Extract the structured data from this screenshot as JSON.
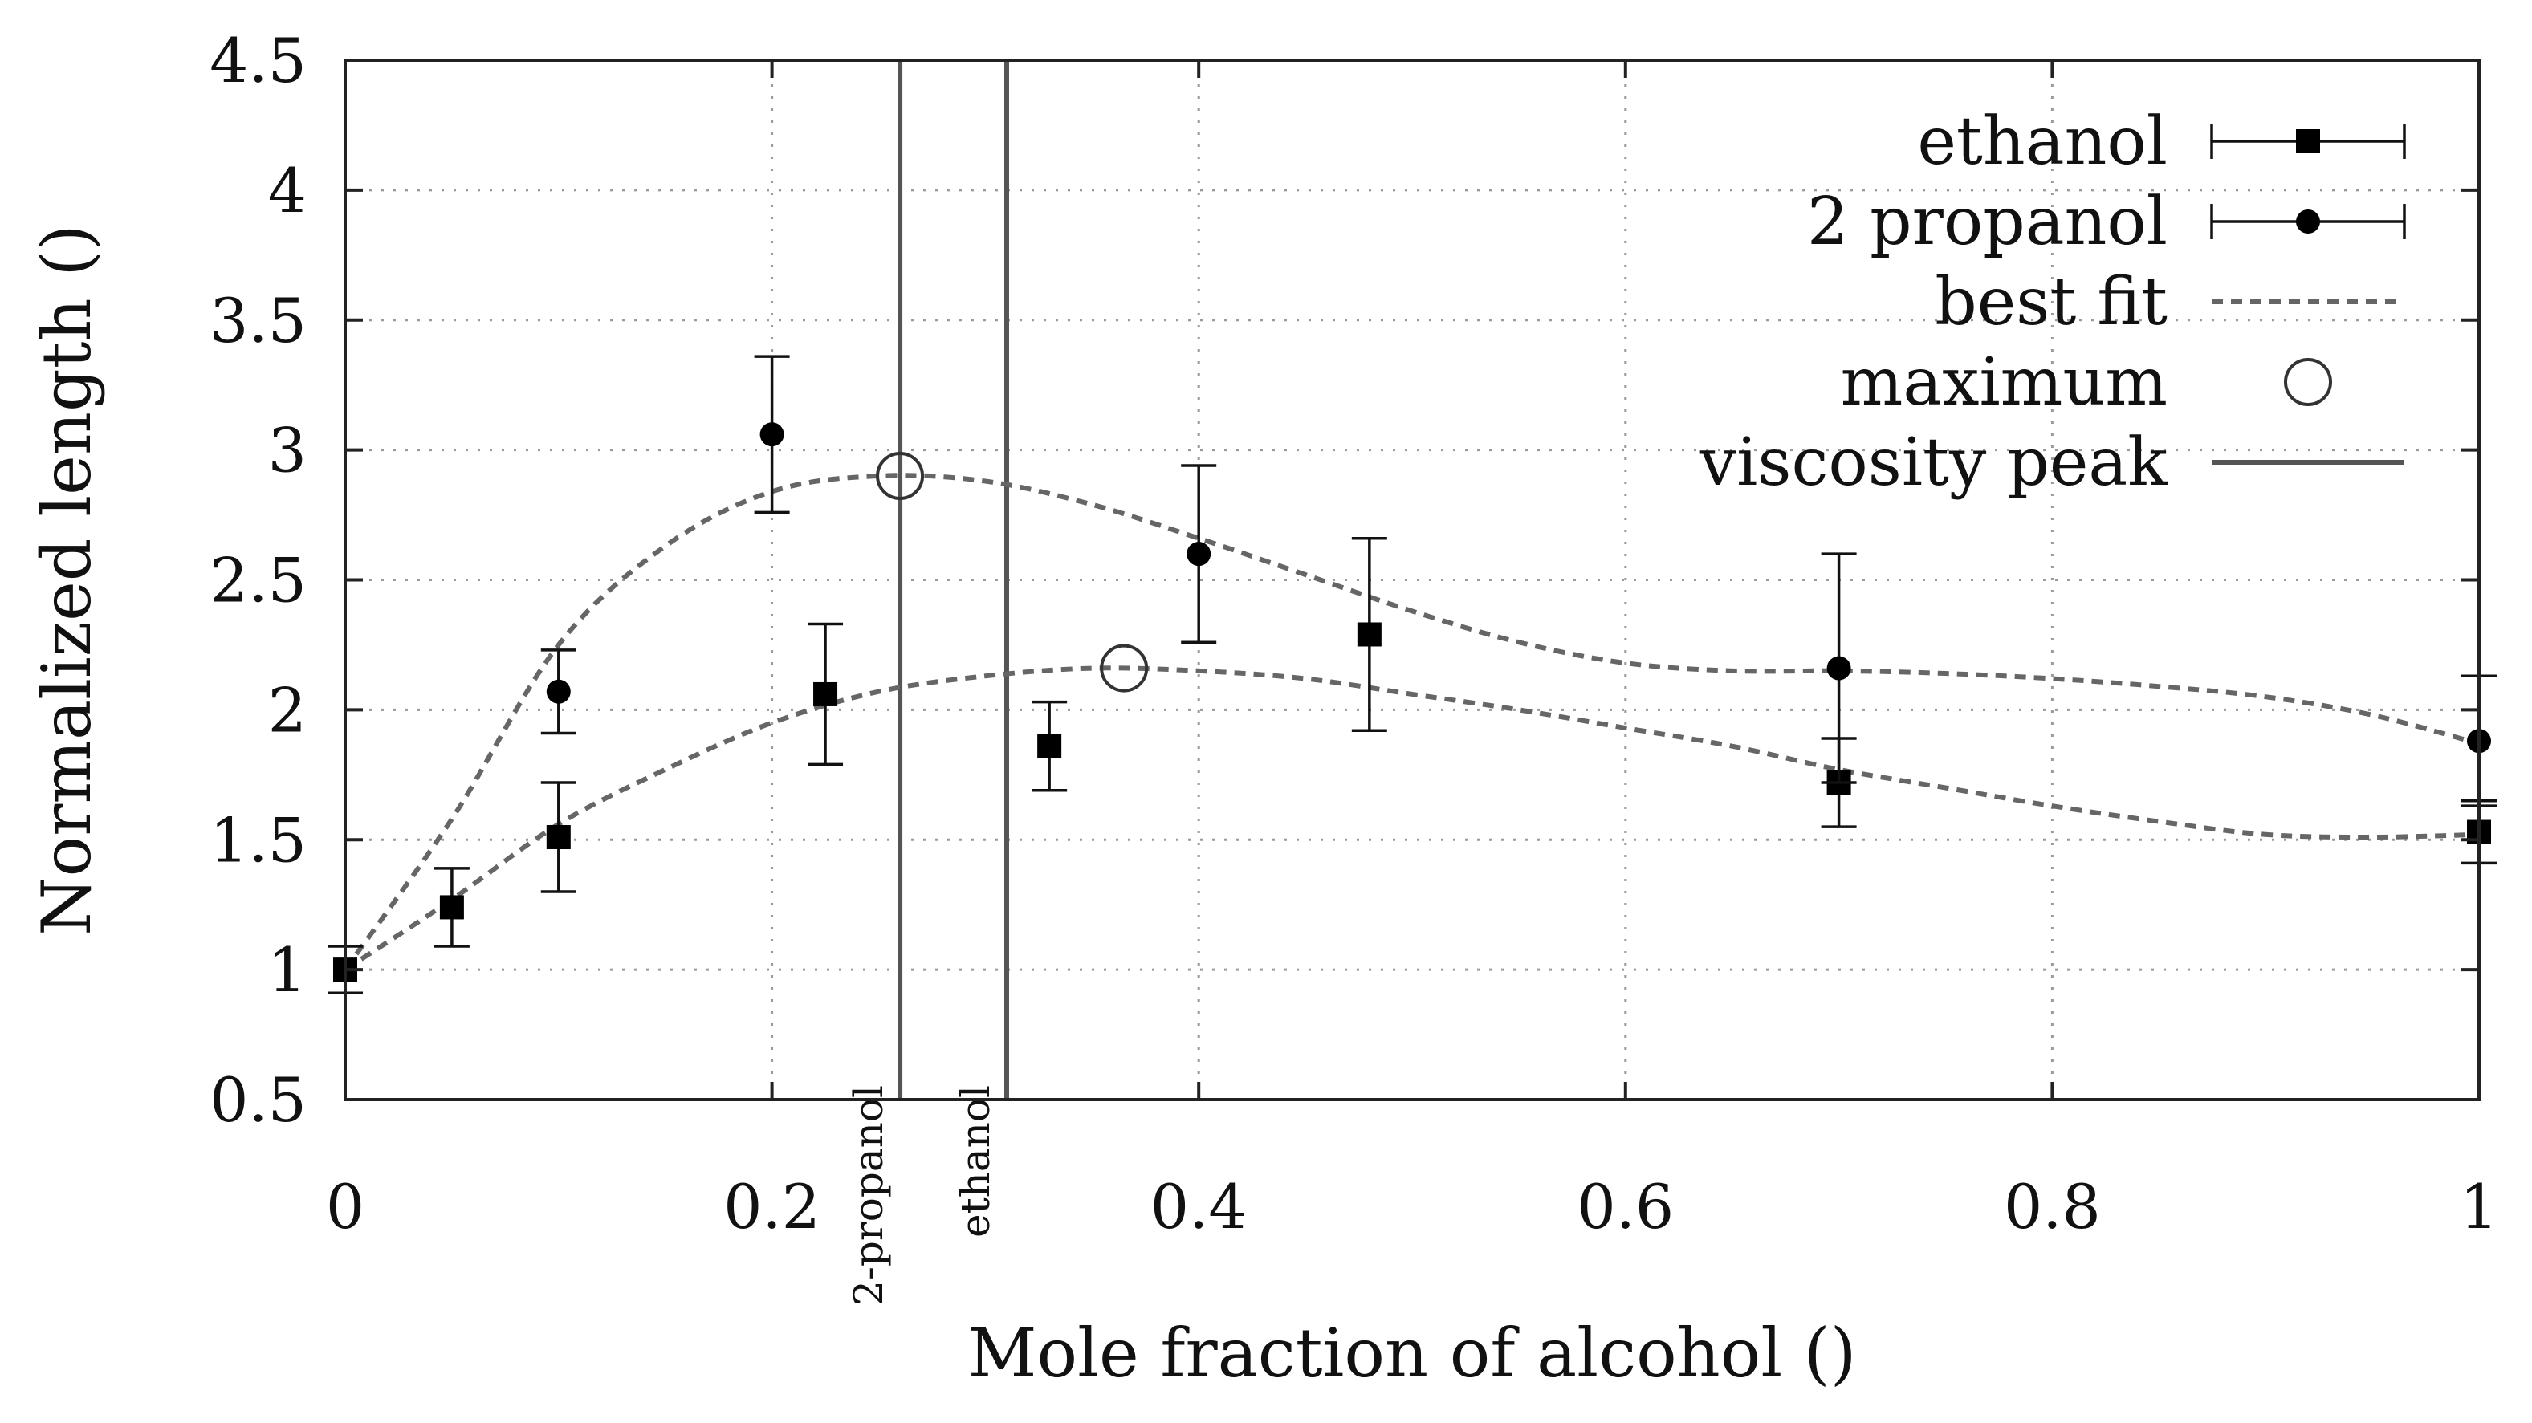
{
  "chart_data": {
    "type": "scatter",
    "title": "",
    "xlabel": "Mole fraction of alcohol ()",
    "ylabel": "Normalized length ()",
    "xlim": [
      0,
      1
    ],
    "ylim": [
      0.5,
      4.5
    ],
    "x_ticks": [
      "0",
      "0.2",
      "0.4",
      "0.6",
      "0.8",
      "1"
    ],
    "y_ticks": [
      "0.5",
      "1",
      "1.5",
      "2",
      "2.5",
      "3",
      "3.5",
      "4",
      "4.5"
    ],
    "grid": true,
    "legend_position": "top-right",
    "legend": [
      {
        "label": "ethanol",
        "kind": "square-errorbar"
      },
      {
        "label": "2 propanol",
        "kind": "circle-errorbar"
      },
      {
        "label": "best fit",
        "kind": "dashed-line"
      },
      {
        "label": "maximum",
        "kind": "open-circle"
      },
      {
        "label": "viscosity peak",
        "kind": "solid-line"
      }
    ],
    "series": [
      {
        "name": "ethanol",
        "marker": "square",
        "points": [
          {
            "x": 0.0,
            "y": 1.0,
            "err": 0.09
          },
          {
            "x": 0.05,
            "y": 1.24,
            "err": 0.15
          },
          {
            "x": 0.1,
            "y": 1.51,
            "err": 0.21
          },
          {
            "x": 0.225,
            "y": 2.06,
            "err": 0.27
          },
          {
            "x": 0.33,
            "y": 1.86,
            "err": 0.17
          },
          {
            "x": 0.48,
            "y": 2.29,
            "err": 0.37
          },
          {
            "x": 0.7,
            "y": 1.72,
            "err": 0.17
          },
          {
            "x": 1.0,
            "y": 1.53,
            "err": 0.12
          }
        ]
      },
      {
        "name": "2 propanol",
        "marker": "circle",
        "points": [
          {
            "x": 0.0,
            "y": 1.0,
            "err": 0.0
          },
          {
            "x": 0.1,
            "y": 2.07,
            "err": 0.16
          },
          {
            "x": 0.2,
            "y": 3.06,
            "err": 0.3
          },
          {
            "x": 0.4,
            "y": 2.6,
            "err": 0.34
          },
          {
            "x": 0.7,
            "y": 2.16,
            "err": 0.44
          },
          {
            "x": 1.0,
            "y": 1.88,
            "err": 0.25
          }
        ]
      }
    ],
    "best_fit": [
      {
        "for": "ethanol",
        "points": [
          [
            0.0,
            1.0
          ],
          [
            0.05,
            1.27
          ],
          [
            0.1,
            1.56
          ],
          [
            0.15,
            1.77
          ],
          [
            0.2,
            1.95
          ],
          [
            0.25,
            2.07
          ],
          [
            0.3,
            2.13
          ],
          [
            0.35,
            2.16
          ],
          [
            0.4,
            2.15
          ],
          [
            0.45,
            2.12
          ],
          [
            0.5,
            2.06
          ],
          [
            0.55,
            2.0
          ],
          [
            0.6,
            1.93
          ],
          [
            0.65,
            1.86
          ],
          [
            0.7,
            1.77
          ],
          [
            0.75,
            1.7
          ],
          [
            0.8,
            1.63
          ],
          [
            0.85,
            1.57
          ],
          [
            0.9,
            1.52
          ],
          [
            0.95,
            1.51
          ],
          [
            1.0,
            1.52
          ]
        ]
      },
      {
        "for": "2 propanol",
        "points": [
          [
            0.0,
            1.0
          ],
          [
            0.05,
            1.58
          ],
          [
            0.1,
            2.25
          ],
          [
            0.15,
            2.63
          ],
          [
            0.2,
            2.84
          ],
          [
            0.25,
            2.9
          ],
          [
            0.3,
            2.88
          ],
          [
            0.35,
            2.79
          ],
          [
            0.4,
            2.66
          ],
          [
            0.45,
            2.52
          ],
          [
            0.5,
            2.38
          ],
          [
            0.55,
            2.26
          ],
          [
            0.6,
            2.18
          ],
          [
            0.65,
            2.15
          ],
          [
            0.7,
            2.15
          ],
          [
            0.75,
            2.14
          ],
          [
            0.8,
            2.12
          ],
          [
            0.85,
            2.09
          ],
          [
            0.9,
            2.05
          ],
          [
            0.95,
            1.98
          ],
          [
            1.0,
            1.87
          ]
        ]
      }
    ],
    "maxima": [
      {
        "for": "2 propanol",
        "x": 0.26,
        "y": 2.9
      },
      {
        "for": "ethanol",
        "x": 0.365,
        "y": 2.16
      }
    ],
    "viscosity_peaks": [
      {
        "label": "2-propanol",
        "x": 0.26
      },
      {
        "label": "ethanol",
        "x": 0.31
      }
    ]
  }
}
